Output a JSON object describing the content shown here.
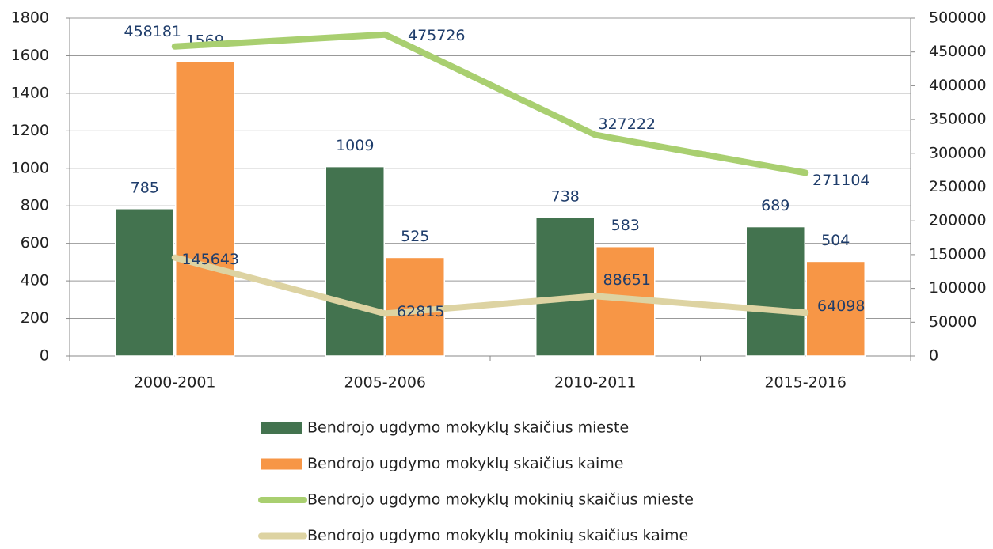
{
  "chart_data": {
    "type": "bar",
    "categories": [
      "2000-2001",
      "2005-2006",
      "2010-2011",
      "2015-2016"
    ],
    "series": [
      {
        "name": "Bendrojo ugdymo mokyklų skaičius mieste",
        "type": "bar",
        "color": "#43734f",
        "values": [
          785,
          1009,
          738,
          689
        ]
      },
      {
        "name": "Bendrojo ugdymo mokyklų skaičius kaime",
        "type": "bar",
        "color": "#f79646",
        "values": [
          1569,
          525,
          583,
          504
        ]
      },
      {
        "name": "Bendrojo ugdymo mokyklų mokinių skaičius mieste",
        "type": "line",
        "axis": "y2",
        "color": "#a9cf70",
        "values": [
          458181,
          475726,
          327222,
          271104
        ]
      },
      {
        "name": "Bendrojo ugdymo mokyklų mokinių skaičius kaime",
        "type": "line",
        "axis": "y2",
        "color": "#ddd3a2",
        "values": [
          145643,
          62815,
          88651,
          64098
        ]
      }
    ],
    "ylim": [
      0,
      1800
    ],
    "yticks": [
      0,
      200,
      400,
      600,
      800,
      1000,
      1200,
      1400,
      1600,
      1800
    ],
    "y2lim": [
      0,
      500000
    ],
    "y2ticks": [
      0,
      50000,
      100000,
      150000,
      200000,
      250000,
      300000,
      350000,
      400000,
      450000,
      500000
    ],
    "grid": true,
    "legend": "bottom"
  }
}
